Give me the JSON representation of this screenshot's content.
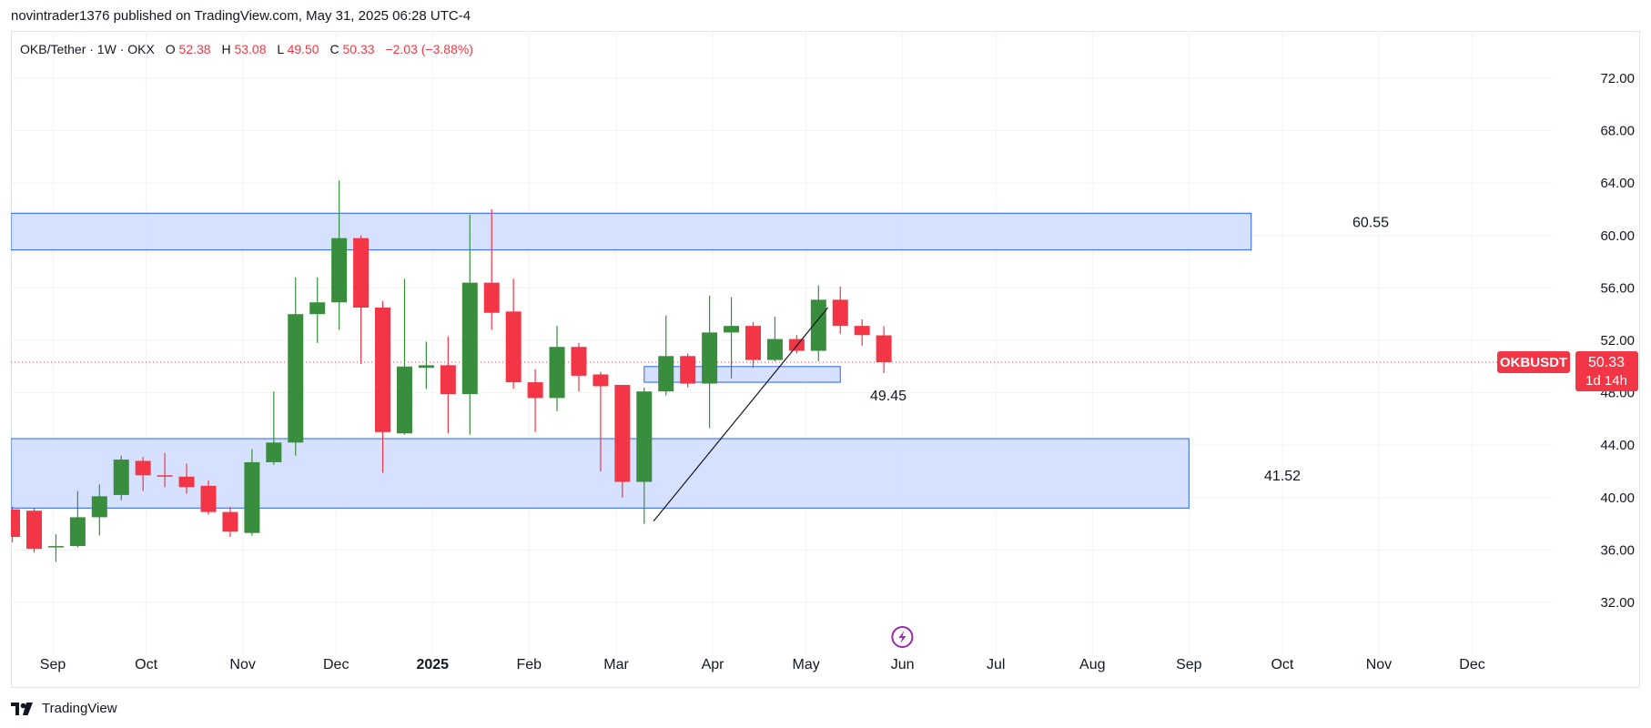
{
  "header": {
    "published": "novintrader1376 published on TradingView.com, May 31, 2025 06:28 UTC-4"
  },
  "footer": {
    "brand": "TradingView",
    "logo_icon": "tradingview-logo-icon"
  },
  "legend": {
    "symbol": "OKB/Tether · 1W · OKX",
    "o_label": "O",
    "o_value": "52.38",
    "h_label": "H",
    "h_value": "53.08",
    "l_label": "L",
    "l_value": "49.50",
    "c_label": "C",
    "c_value": "50.33",
    "change": "−2.03 (−3.88%)"
  },
  "colors": {
    "up": "#388e3c",
    "down": "#f23645",
    "zone_fill": "#d1ddff",
    "zone_stroke": "#2962ff",
    "grid": "#f0f3fa",
    "axis_text": "#131722"
  },
  "chart_data": {
    "type": "candlestick",
    "interval": "1W",
    "symbol": "OKBUSDT",
    "ylim": [
      29,
      75
    ],
    "y_ticks": [
      "72.00",
      "68.00",
      "64.00",
      "60.00",
      "56.00",
      "52.00",
      "48.00",
      "44.00",
      "40.00",
      "36.00",
      "32.00"
    ],
    "x_ticks": [
      {
        "label": "Sep",
        "date": "2024-09-01",
        "bold": false
      },
      {
        "label": "Oct",
        "date": "2024-10-01",
        "bold": false
      },
      {
        "label": "Nov",
        "date": "2024-11-01",
        "bold": false
      },
      {
        "label": "Dec",
        "date": "2024-12-01",
        "bold": false
      },
      {
        "label": "2025",
        "date": "2025-01-01",
        "bold": true
      },
      {
        "label": "Feb",
        "date": "2025-02-01",
        "bold": false
      },
      {
        "label": "Mar",
        "date": "2025-03-01",
        "bold": false
      },
      {
        "label": "Apr",
        "date": "2025-04-01",
        "bold": false
      },
      {
        "label": "May",
        "date": "2025-05-01",
        "bold": false
      },
      {
        "label": "Jun",
        "date": "2025-06-01",
        "bold": false
      },
      {
        "label": "Jul",
        "date": "2025-07-01",
        "bold": false
      },
      {
        "label": "Aug",
        "date": "2025-08-01",
        "bold": false
      },
      {
        "label": "Sep",
        "date": "2025-09-01",
        "bold": false
      },
      {
        "label": "Oct",
        "date": "2025-10-01",
        "bold": false
      },
      {
        "label": "Nov",
        "date": "2025-11-01",
        "bold": false
      },
      {
        "label": "Dec",
        "date": "2025-12-01",
        "bold": false
      }
    ],
    "candles": [
      {
        "date": "2024-08-19",
        "o": 39.1,
        "h": 39.3,
        "l": 36.6,
        "c": 37.0
      },
      {
        "date": "2024-08-26",
        "o": 39.0,
        "h": 39.2,
        "l": 35.8,
        "c": 36.1
      },
      {
        "date": "2024-09-02",
        "o": 36.2,
        "h": 37.2,
        "l": 35.1,
        "c": 36.3
      },
      {
        "date": "2024-09-09",
        "o": 36.3,
        "h": 40.5,
        "l": 36.2,
        "c": 38.5
      },
      {
        "date": "2024-09-16",
        "o": 38.5,
        "h": 41.0,
        "l": 37.1,
        "c": 40.1
      },
      {
        "date": "2024-09-23",
        "o": 40.2,
        "h": 43.2,
        "l": 39.8,
        "c": 42.9
      },
      {
        "date": "2024-09-30",
        "o": 42.8,
        "h": 43.1,
        "l": 40.5,
        "c": 41.7
      },
      {
        "date": "2024-10-07",
        "o": 41.7,
        "h": 43.4,
        "l": 40.8,
        "c": 41.6
      },
      {
        "date": "2024-10-14",
        "o": 41.6,
        "h": 42.6,
        "l": 40.3,
        "c": 40.8
      },
      {
        "date": "2024-10-21",
        "o": 40.9,
        "h": 41.3,
        "l": 38.7,
        "c": 38.9
      },
      {
        "date": "2024-10-28",
        "o": 38.9,
        "h": 39.3,
        "l": 37.0,
        "c": 37.4
      },
      {
        "date": "2024-11-04",
        "o": 37.3,
        "h": 43.7,
        "l": 37.1,
        "c": 42.7
      },
      {
        "date": "2024-11-11",
        "o": 42.7,
        "h": 48.1,
        "l": 42.5,
        "c": 44.2
      },
      {
        "date": "2024-11-18",
        "o": 44.2,
        "h": 56.8,
        "l": 43.2,
        "c": 54.0
      },
      {
        "date": "2024-11-25",
        "o": 54.0,
        "h": 56.8,
        "l": 51.8,
        "c": 54.9
      },
      {
        "date": "2024-12-02",
        "o": 54.9,
        "h": 64.2,
        "l": 52.8,
        "c": 59.8
      },
      {
        "date": "2024-12-09",
        "o": 59.8,
        "h": 60.0,
        "l": 50.2,
        "c": 54.5
      },
      {
        "date": "2024-12-16",
        "o": 54.5,
        "h": 55.0,
        "l": 41.9,
        "c": 45.0
      },
      {
        "date": "2024-12-23",
        "o": 44.9,
        "h": 56.7,
        "l": 44.8,
        "c": 50.0
      },
      {
        "date": "2024-12-30",
        "o": 49.9,
        "h": 51.9,
        "l": 48.3,
        "c": 50.1
      },
      {
        "date": "2025-01-06",
        "o": 50.1,
        "h": 52.3,
        "l": 44.9,
        "c": 47.9
      },
      {
        "date": "2025-01-13",
        "o": 47.9,
        "h": 61.6,
        "l": 44.8,
        "c": 56.4
      },
      {
        "date": "2025-01-20",
        "o": 56.4,
        "h": 62.0,
        "l": 52.8,
        "c": 54.1
      },
      {
        "date": "2025-01-27",
        "o": 54.2,
        "h": 56.7,
        "l": 48.3,
        "c": 48.8
      },
      {
        "date": "2025-02-03",
        "o": 48.8,
        "h": 49.8,
        "l": 45.0,
        "c": 47.6
      },
      {
        "date": "2025-02-10",
        "o": 47.6,
        "h": 53.1,
        "l": 46.6,
        "c": 51.5
      },
      {
        "date": "2025-02-17",
        "o": 51.5,
        "h": 51.8,
        "l": 48.1,
        "c": 49.3
      },
      {
        "date": "2025-02-24",
        "o": 49.4,
        "h": 49.6,
        "l": 42.0,
        "c": 48.5
      },
      {
        "date": "2025-03-03",
        "o": 48.6,
        "h": 48.6,
        "l": 40.0,
        "c": 41.2
      },
      {
        "date": "2025-03-10",
        "o": 41.2,
        "h": 48.4,
        "l": 38.0,
        "c": 48.1
      },
      {
        "date": "2025-03-17",
        "o": 48.1,
        "h": 53.9,
        "l": 47.8,
        "c": 50.8
      },
      {
        "date": "2025-03-24",
        "o": 50.8,
        "h": 51.0,
        "l": 48.4,
        "c": 48.7
      },
      {
        "date": "2025-03-31",
        "o": 48.7,
        "h": 55.4,
        "l": 45.3,
        "c": 52.6
      },
      {
        "date": "2025-04-07",
        "o": 52.6,
        "h": 55.3,
        "l": 49.1,
        "c": 53.1
      },
      {
        "date": "2025-04-14",
        "o": 53.1,
        "h": 53.4,
        "l": 49.9,
        "c": 50.5
      },
      {
        "date": "2025-04-21",
        "o": 50.5,
        "h": 53.8,
        "l": 50.4,
        "c": 52.1
      },
      {
        "date": "2025-04-28",
        "o": 52.1,
        "h": 52.4,
        "l": 51.0,
        "c": 51.2
      },
      {
        "date": "2025-05-05",
        "o": 51.2,
        "h": 56.2,
        "l": 50.4,
        "c": 55.1
      },
      {
        "date": "2025-05-12",
        "o": 55.1,
        "h": 56.1,
        "l": 52.5,
        "c": 53.1
      },
      {
        "date": "2025-05-19",
        "o": 53.1,
        "h": 53.6,
        "l": 51.6,
        "c": 52.4
      },
      {
        "date": "2025-05-26",
        "o": 52.38,
        "h": 53.08,
        "l": 49.5,
        "c": 50.33
      }
    ],
    "zones": [
      {
        "from": "2024-08-15",
        "to": "2025-09-21",
        "low": 58.9,
        "high": 61.7,
        "label": "60.55"
      },
      {
        "from": "2024-08-15",
        "to": "2025-09-01",
        "low": 39.2,
        "high": 44.5,
        "label": "41.52"
      },
      {
        "from": "2025-03-10",
        "to": "2025-05-12",
        "low": 48.8,
        "high": 50.0,
        "label": "49.45"
      }
    ],
    "trendline": {
      "from": {
        "date": "2025-03-13",
        "price": 38.2
      },
      "to": {
        "date": "2025-05-08",
        "price": 54.5
      }
    },
    "last_price": {
      "value": "50.33",
      "price": 50.33,
      "symbol": "OKBUSDT",
      "countdown": "1d 14h"
    },
    "event_icon": {
      "date": "2025-05-29",
      "name": "lightning-icon"
    }
  }
}
